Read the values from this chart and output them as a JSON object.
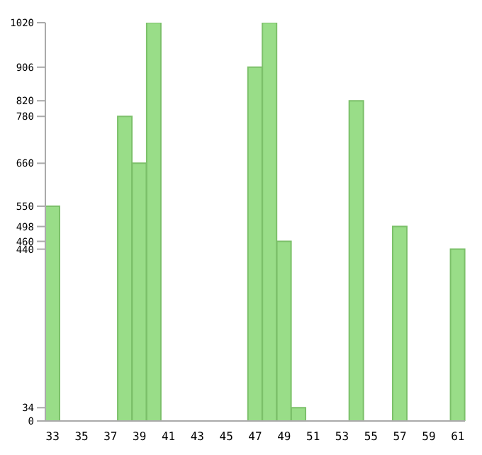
{
  "chart_data": {
    "type": "bar",
    "categories": [
      "33",
      null,
      "35",
      null,
      "37",
      null,
      "39",
      null,
      "41",
      null,
      "43",
      null,
      "45",
      null,
      "47",
      null,
      "49",
      null,
      "51",
      null,
      "53",
      null,
      "55",
      null,
      "57",
      null,
      "59",
      null,
      "61"
    ],
    "values": [
      550,
      0,
      0,
      0,
      0,
      780,
      660,
      1020,
      0,
      0,
      0,
      0,
      0,
      0,
      906,
      1020,
      460,
      34,
      0,
      0,
      0,
      820,
      0,
      0,
      498,
      0,
      0,
      0,
      440
    ],
    "color": "#99dd88",
    "ylim": [
      0,
      1020
    ],
    "yticks": [
      0,
      34,
      440,
      460,
      498,
      550,
      660,
      780,
      820,
      906,
      1020
    ],
    "grid": false
  }
}
